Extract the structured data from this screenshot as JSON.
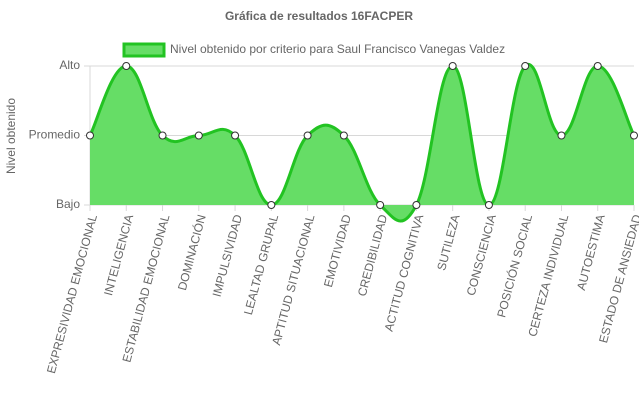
{
  "chart_data": {
    "type": "area",
    "title": "Gráfica de resultados 16FACPER",
    "y_label": "Nivel obtenido",
    "categories": [
      "EXPRESIVIDAD EMOCIONAL",
      "INTELIGENCIA",
      "ESTABILIDAD EMOCIONAL",
      "DOMINACIÓN",
      "IMPULSIVIDAD",
      "LEALTAD GRUPAL",
      "APTITUD SITUACIONAL",
      "EMOTIVIDAD",
      "CREDIBILIDAD",
      "ACTITUD COGNITIVA",
      "SUTILEZA",
      "CONSCIENCIA",
      "POSICIÓN SOCIAL",
      "CERTEZA INDIVIDUAL",
      "AUTOESTIMA",
      "ESTADO DE ANSIEDAD"
    ],
    "series": [
      {
        "name": "Nivel obtenido por criterio para Saul Francisco Vanegas Valdez",
        "color": "#22c322",
        "fill": "#66dd66",
        "values": [
          2,
          3,
          2,
          2,
          2,
          1,
          2,
          2,
          1,
          1,
          3,
          1,
          3,
          2,
          3,
          2
        ]
      }
    ],
    "ylim": [
      1,
      3
    ],
    "yticks": [
      {
        "value": 1,
        "label": "Bajo"
      },
      {
        "value": 2,
        "label": "Promedio"
      },
      {
        "value": 3,
        "label": "Alto"
      }
    ],
    "grid": true,
    "legend": "top"
  }
}
